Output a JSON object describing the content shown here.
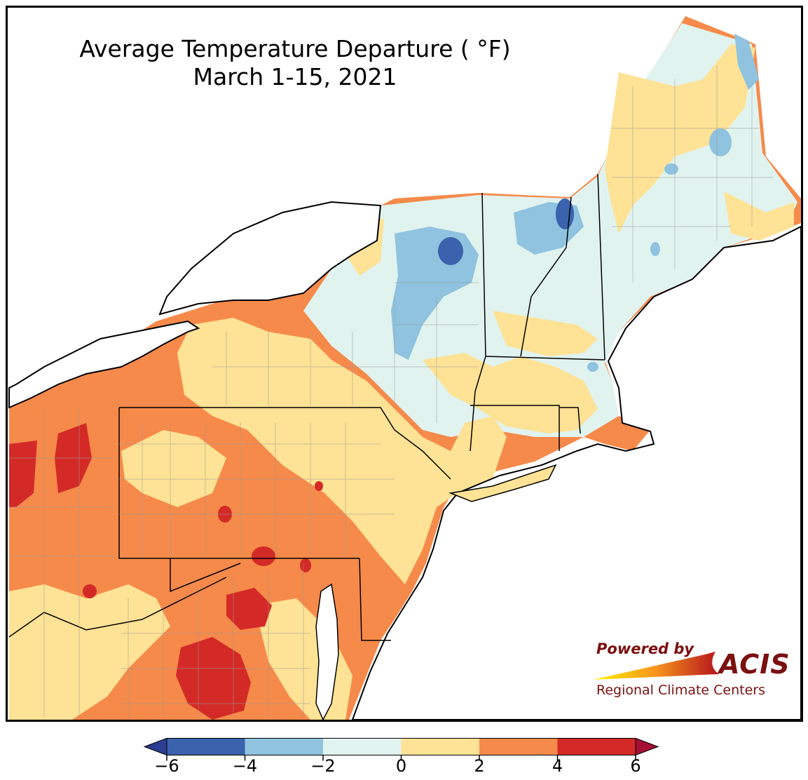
{
  "title": {
    "line1": "Average Temperature Departure ( °F)",
    "line2": "March 1-15, 2021"
  },
  "logo": {
    "powered_by": "Powered by",
    "name": "ACIS",
    "subtitle": "Regional Climate Centers"
  },
  "legend": {
    "ticks": [
      "−6",
      "−4",
      "−2",
      "0",
      "2",
      "4",
      "6"
    ],
    "tick_values": [
      -6,
      -4,
      -2,
      0,
      2,
      4,
      6
    ],
    "bins": [
      {
        "from": -6,
        "to": -4,
        "color": "#3b62ad"
      },
      {
        "from": -4,
        "to": -2,
        "color": "#8fc3df"
      },
      {
        "from": -2,
        "to": 0,
        "color": "#e1f3ef"
      },
      {
        "from": 0,
        "to": 2,
        "color": "#fee295"
      },
      {
        "from": 2,
        "to": 4,
        "color": "#f68a4a"
      },
      {
        "from": 4,
        "to": 6,
        "color": "#d42a27"
      }
    ],
    "low_arrow_color": "#2d3d91",
    "high_arrow_color": "#a50f35"
  },
  "colors": {
    "frame": "#000000",
    "water": "#ffffff",
    "state_border": "#000000",
    "county_border": "#9a9a9a",
    "logo_text": "#7b1010"
  }
}
